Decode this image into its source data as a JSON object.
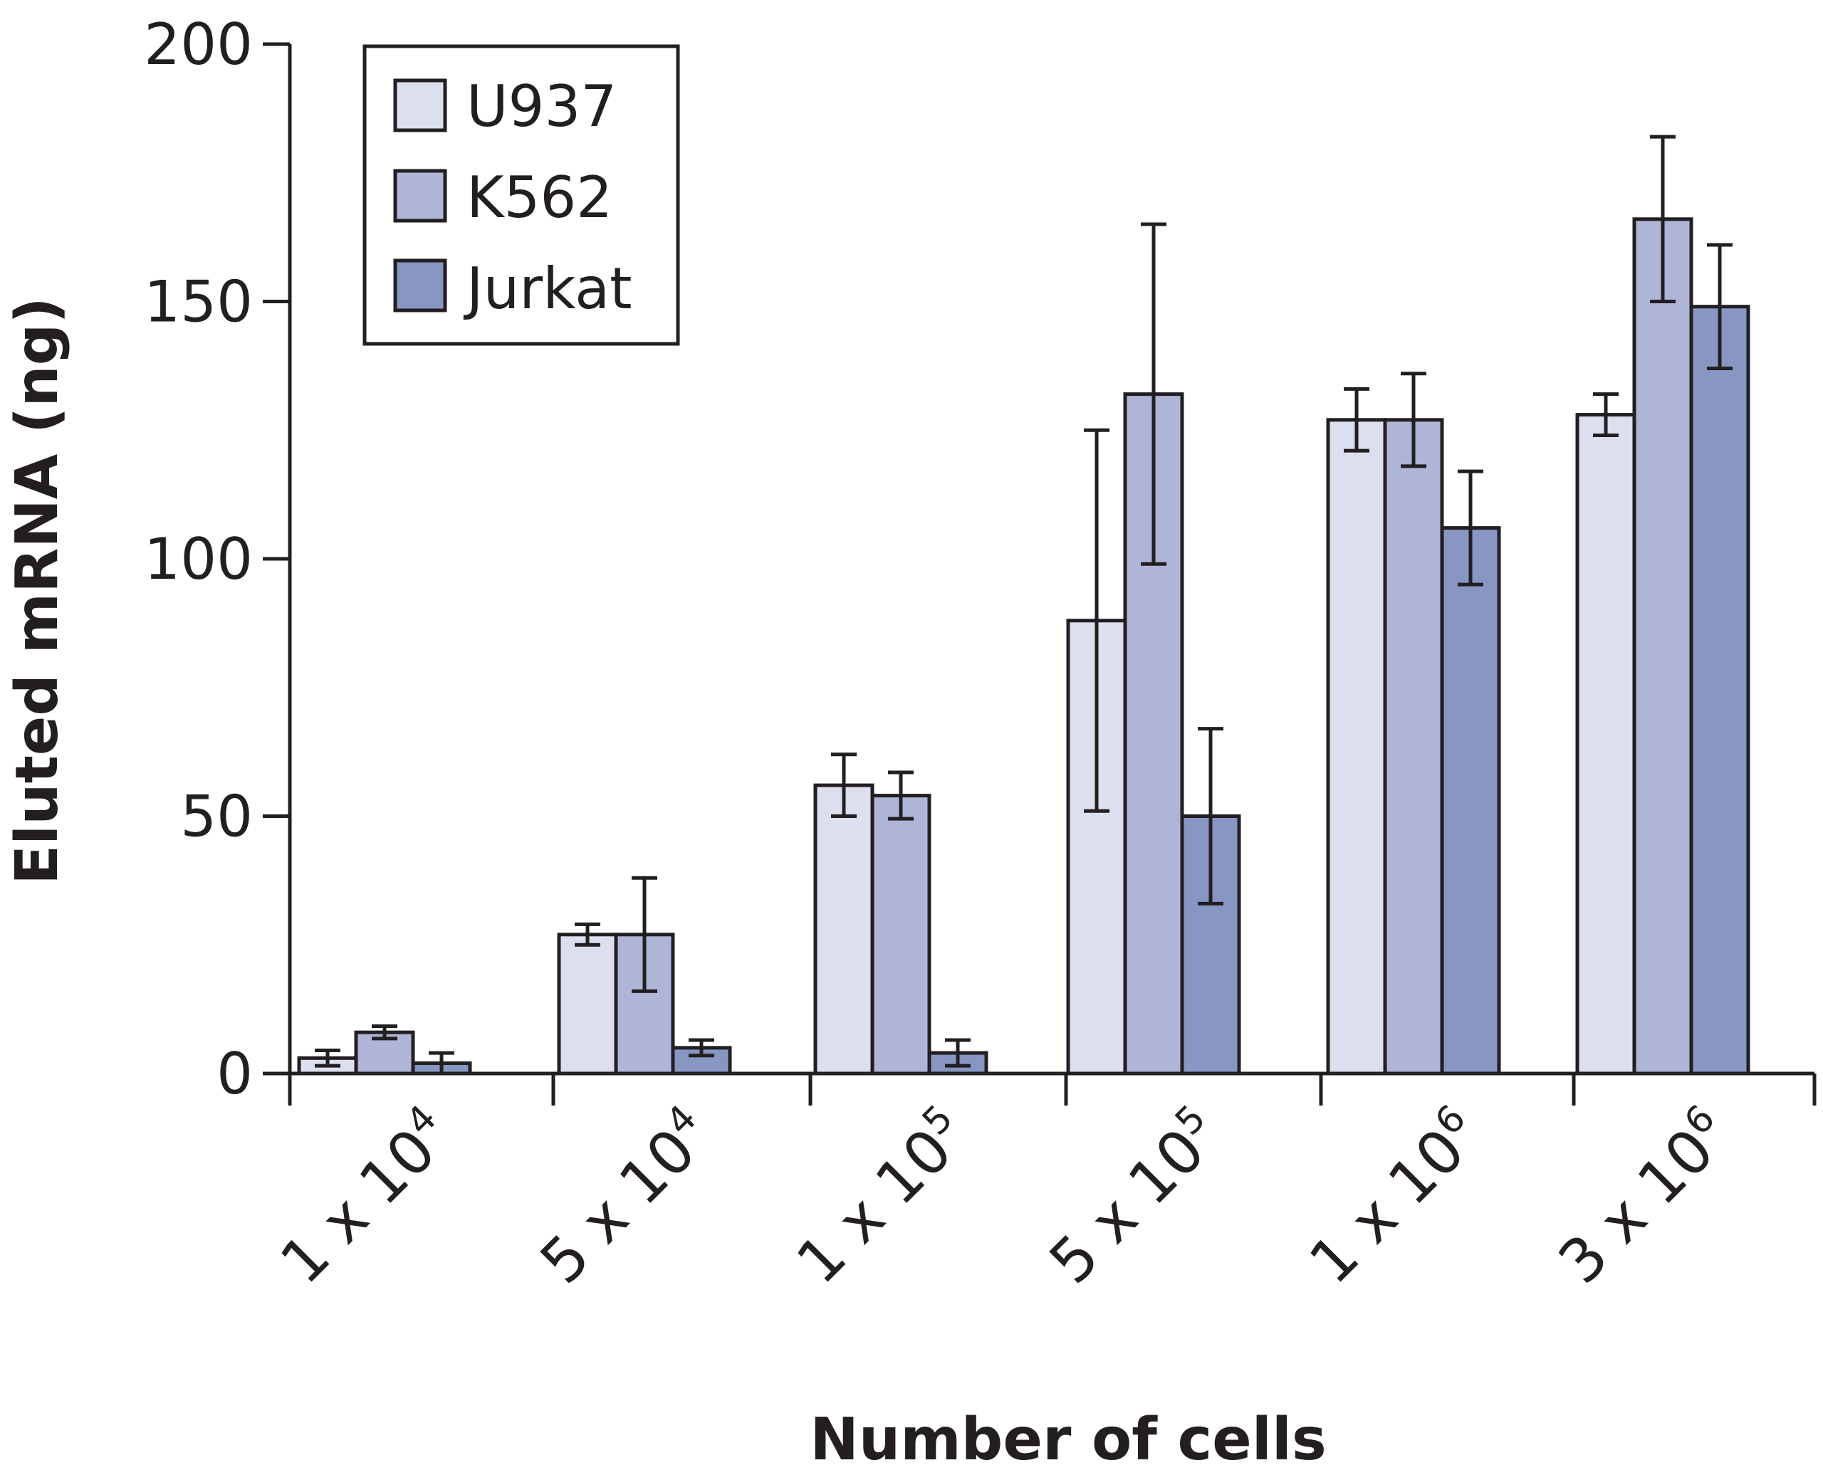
{
  "chart_data": {
    "type": "bar",
    "title": "",
    "xlabel": "Number of cells",
    "ylabel": "Eluted mRNA (ng)",
    "ylim": [
      0,
      200
    ],
    "yticks": [
      "0",
      "50",
      "100",
      "150",
      "200"
    ],
    "categories": [
      {
        "base": "1 x 10",
        "exp": "4"
      },
      {
        "base": "5 x 10",
        "exp": "4"
      },
      {
        "base": "1 x 10",
        "exp": "5"
      },
      {
        "base": "5 x 10",
        "exp": "5"
      },
      {
        "base": "1 x 10",
        "exp": "6"
      },
      {
        "base": "3 x 10",
        "exp": "6"
      }
    ],
    "series": [
      {
        "name": "U937",
        "color": "#dcdfee",
        "values": [
          3,
          27,
          56,
          88,
          127,
          128
        ],
        "errors": [
          1.5,
          2,
          6,
          37,
          6,
          4
        ]
      },
      {
        "name": "K562",
        "color": "#aeb5d6",
        "values": [
          8,
          27,
          54,
          132,
          127,
          166
        ],
        "errors": [
          1.2,
          11,
          4.5,
          33,
          9,
          16
        ]
      },
      {
        "name": "Jurkat",
        "color": "#8796c3",
        "values": [
          2,
          5,
          4,
          50,
          106,
          149
        ],
        "errors": [
          2,
          1.5,
          2.5,
          17,
          11,
          12
        ]
      }
    ],
    "legend_position": "top-left"
  }
}
